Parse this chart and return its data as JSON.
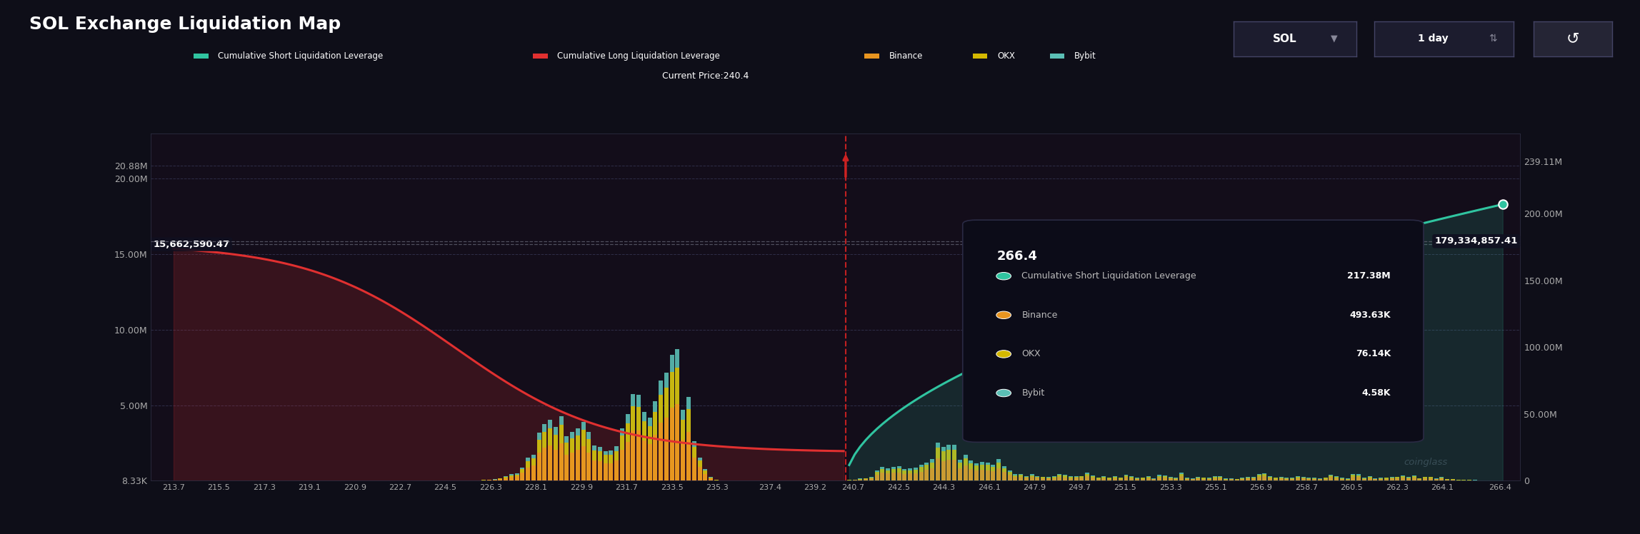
{
  "title": "SOL Exchange Liquidation Map",
  "background_color": "#0e0e18",
  "plot_bg_color": "#130d1a",
  "current_price": 240.4,
  "current_price_label": "Current Price:240.4",
  "long_liq_value": 15662590.47,
  "long_liq_label": "15,662,590.47",
  "short_liq_value": 179334857.41,
  "short_liq_label": "179,334,857.41",
  "colors": {
    "binance": "#e89520",
    "okx": "#d4b800",
    "bybit": "#5bbfb5",
    "long_line": "#e03030",
    "short_line": "#30c4a0",
    "current_price_line": "#cc2222",
    "text": "#aaaaaa",
    "grid": "#2a2a40"
  },
  "x_ticks": [
    213.7,
    215.5,
    217.3,
    219.1,
    220.9,
    222.7,
    224.5,
    226.3,
    228.1,
    229.9,
    231.7,
    233.5,
    235.3,
    237.4,
    239.2,
    240.7,
    242.5,
    244.3,
    246.1,
    247.9,
    249.7,
    251.5,
    253.3,
    255.1,
    256.9,
    258.7,
    260.5,
    262.3,
    264.1,
    266.4
  ],
  "left_ticks": [
    8330,
    5000000,
    10000000,
    15000000,
    20000000,
    20880000
  ],
  "left_labels": [
    "8.33K",
    "5.00M",
    "10.00M",
    "15.00M",
    "20.00M",
    "20.88M"
  ],
  "right_ticks": [
    0,
    50000000,
    100000000,
    150000000,
    200000000,
    239110000
  ],
  "right_labels": [
    "0",
    "50.00M",
    "100.00M",
    "150.00M",
    "200.00M",
    "239.11M"
  ],
  "legend": [
    {
      "label": "Cumulative Short Liquidation Leverage",
      "color": "#30c4a0"
    },
    {
      "label": "Cumulative Long Liquidation Leverage",
      "color": "#e03030"
    },
    {
      "label": "Binance",
      "color": "#e89520"
    },
    {
      "label": "OKX",
      "color": "#d4b800"
    },
    {
      "label": "Bybit",
      "color": "#5bbfb5"
    }
  ],
  "tooltip": {
    "price": "266.4",
    "items": [
      {
        "label": "Cumulative Short Liquidation Leverage",
        "color": "#30c4a0",
        "value": "217.38M"
      },
      {
        "label": "Binance",
        "color": "#e89520",
        "value": "493.63K"
      },
      {
        "label": "OKX",
        "color": "#d4b800",
        "value": "76.14K"
      },
      {
        "label": "Bybit",
        "color": "#5bbfb5",
        "value": "4.58K"
      }
    ]
  }
}
